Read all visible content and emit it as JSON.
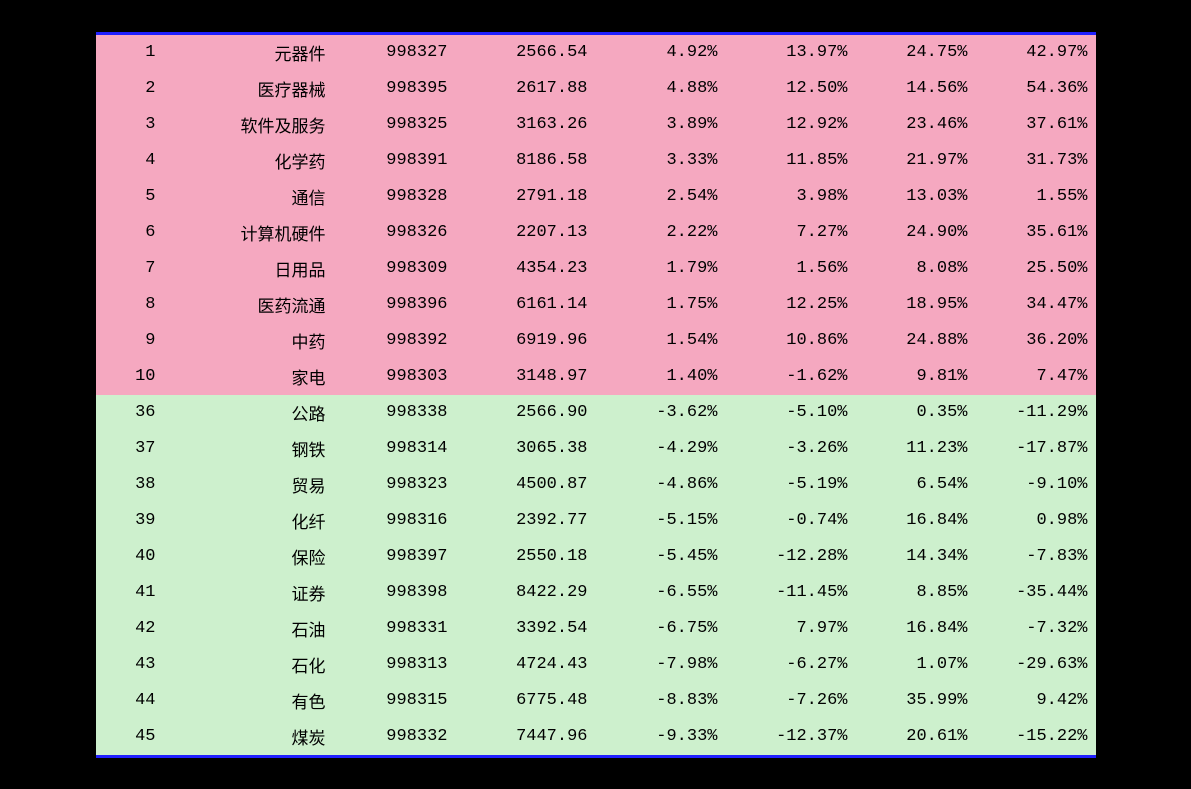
{
  "table": {
    "border_color": "#2020ff",
    "pink_bg": "#f5a8c0",
    "green_bg": "#cdf0cd",
    "text_color": "#000000",
    "page_bg": "#000000",
    "font_size": 17,
    "columns": [
      {
        "key": "rank",
        "align": "right"
      },
      {
        "key": "name",
        "align": "right"
      },
      {
        "key": "code",
        "align": "right"
      },
      {
        "key": "value",
        "align": "right"
      },
      {
        "key": "pct1",
        "align": "right"
      },
      {
        "key": "pct2",
        "align": "right"
      },
      {
        "key": "pct3",
        "align": "right"
      },
      {
        "key": "pct4",
        "align": "right"
      }
    ],
    "rows": [
      {
        "group": "pink",
        "rank": "1",
        "name": "元器件",
        "code": "998327",
        "value": "2566.54",
        "pct1": "4.92%",
        "pct2": "13.97%",
        "pct3": "24.75%",
        "pct4": "42.97%"
      },
      {
        "group": "pink",
        "rank": "2",
        "name": "医疗器械",
        "code": "998395",
        "value": "2617.88",
        "pct1": "4.88%",
        "pct2": "12.50%",
        "pct3": "14.56%",
        "pct4": "54.36%"
      },
      {
        "group": "pink",
        "rank": "3",
        "name": "软件及服务",
        "code": "998325",
        "value": "3163.26",
        "pct1": "3.89%",
        "pct2": "12.92%",
        "pct3": "23.46%",
        "pct4": "37.61%"
      },
      {
        "group": "pink",
        "rank": "4",
        "name": "化学药",
        "code": "998391",
        "value": "8186.58",
        "pct1": "3.33%",
        "pct2": "11.85%",
        "pct3": "21.97%",
        "pct4": "31.73%"
      },
      {
        "group": "pink",
        "rank": "5",
        "name": "通信",
        "code": "998328",
        "value": "2791.18",
        "pct1": "2.54%",
        "pct2": "3.98%",
        "pct3": "13.03%",
        "pct4": "1.55%"
      },
      {
        "group": "pink",
        "rank": "6",
        "name": "计算机硬件",
        "code": "998326",
        "value": "2207.13",
        "pct1": "2.22%",
        "pct2": "7.27%",
        "pct3": "24.90%",
        "pct4": "35.61%"
      },
      {
        "group": "pink",
        "rank": "7",
        "name": "日用品",
        "code": "998309",
        "value": "4354.23",
        "pct1": "1.79%",
        "pct2": "1.56%",
        "pct3": "8.08%",
        "pct4": "25.50%"
      },
      {
        "group": "pink",
        "rank": "8",
        "name": "医药流通",
        "code": "998396",
        "value": "6161.14",
        "pct1": "1.75%",
        "pct2": "12.25%",
        "pct3": "18.95%",
        "pct4": "34.47%"
      },
      {
        "group": "pink",
        "rank": "9",
        "name": "中药",
        "code": "998392",
        "value": "6919.96",
        "pct1": "1.54%",
        "pct2": "10.86%",
        "pct3": "24.88%",
        "pct4": "36.20%"
      },
      {
        "group": "pink",
        "rank": "10",
        "name": "家电",
        "code": "998303",
        "value": "3148.97",
        "pct1": "1.40%",
        "pct2": "-1.62%",
        "pct3": "9.81%",
        "pct4": "7.47%"
      },
      {
        "group": "green",
        "rank": "36",
        "name": "公路",
        "code": "998338",
        "value": "2566.90",
        "pct1": "-3.62%",
        "pct2": "-5.10%",
        "pct3": "0.35%",
        "pct4": "-11.29%"
      },
      {
        "group": "green",
        "rank": "37",
        "name": "钢铁",
        "code": "998314",
        "value": "3065.38",
        "pct1": "-4.29%",
        "pct2": "-3.26%",
        "pct3": "11.23%",
        "pct4": "-17.87%"
      },
      {
        "group": "green",
        "rank": "38",
        "name": "贸易",
        "code": "998323",
        "value": "4500.87",
        "pct1": "-4.86%",
        "pct2": "-5.19%",
        "pct3": "6.54%",
        "pct4": "-9.10%"
      },
      {
        "group": "green",
        "rank": "39",
        "name": "化纤",
        "code": "998316",
        "value": "2392.77",
        "pct1": "-5.15%",
        "pct2": "-0.74%",
        "pct3": "16.84%",
        "pct4": "0.98%"
      },
      {
        "group": "green",
        "rank": "40",
        "name": "保险",
        "code": "998397",
        "value": "2550.18",
        "pct1": "-5.45%",
        "pct2": "-12.28%",
        "pct3": "14.34%",
        "pct4": "-7.83%"
      },
      {
        "group": "green",
        "rank": "41",
        "name": "证券",
        "code": "998398",
        "value": "8422.29",
        "pct1": "-6.55%",
        "pct2": "-11.45%",
        "pct3": "8.85%",
        "pct4": "-35.44%"
      },
      {
        "group": "green",
        "rank": "42",
        "name": "石油",
        "code": "998331",
        "value": "3392.54",
        "pct1": "-6.75%",
        "pct2": "7.97%",
        "pct3": "16.84%",
        "pct4": "-7.32%"
      },
      {
        "group": "green",
        "rank": "43",
        "name": "石化",
        "code": "998313",
        "value": "4724.43",
        "pct1": "-7.98%",
        "pct2": "-6.27%",
        "pct3": "1.07%",
        "pct4": "-29.63%"
      },
      {
        "group": "green",
        "rank": "44",
        "name": "有色",
        "code": "998315",
        "value": "6775.48",
        "pct1": "-8.83%",
        "pct2": "-7.26%",
        "pct3": "35.99%",
        "pct4": "9.42%"
      },
      {
        "group": "green",
        "rank": "45",
        "name": "煤炭",
        "code": "998332",
        "value": "7447.96",
        "pct1": "-9.33%",
        "pct2": "-12.37%",
        "pct3": "20.61%",
        "pct4": "-15.22%"
      }
    ]
  }
}
